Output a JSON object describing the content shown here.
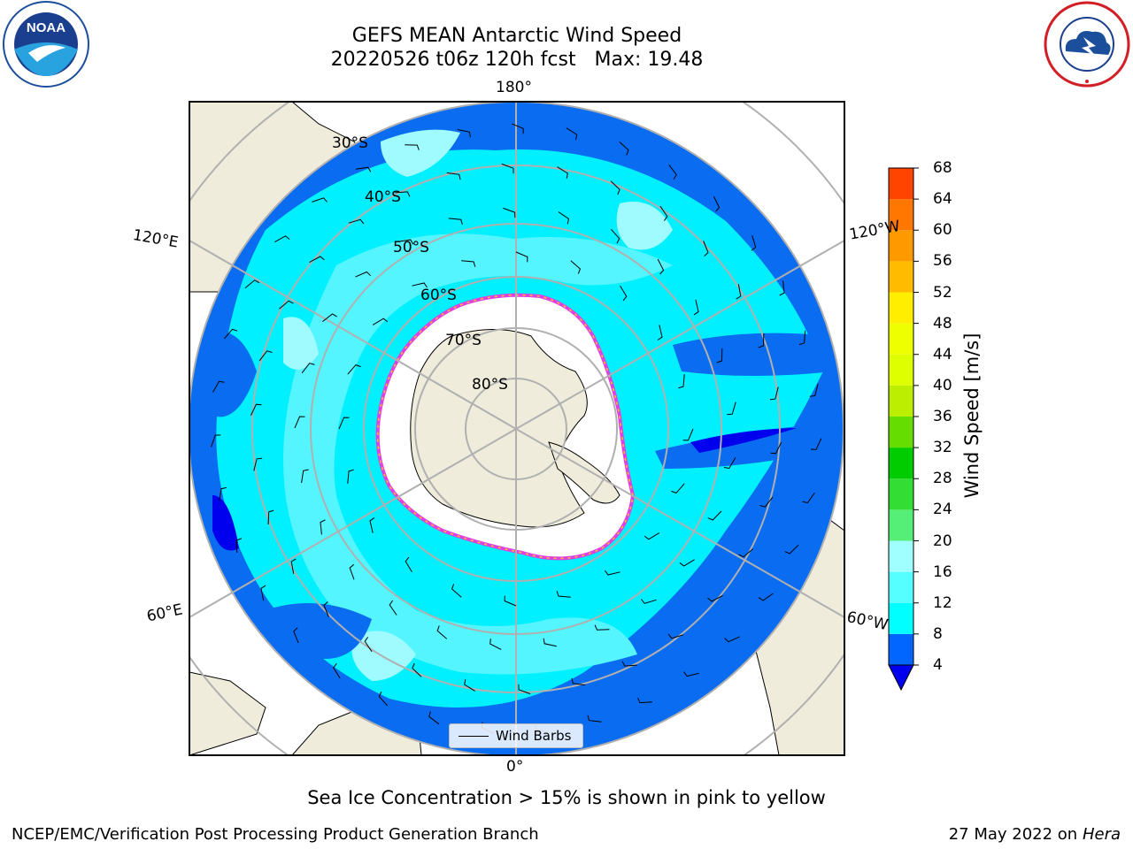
{
  "header": {
    "title_line_1": "GEFS MEAN Antarctic Wind Speed",
    "title_line_2": "20220526 t06z 120h fcst   Max: 19.48"
  },
  "logos": {
    "left": "noaa-logo",
    "right": "national-weather-service-logo"
  },
  "map": {
    "projection": "south-polar-stereographic",
    "longitude_labels": {
      "top": "180°",
      "bottom": "0°",
      "upper_left": "120°E",
      "upper_right": "120°W",
      "lower_left": "60°E",
      "lower_right": "60°W"
    },
    "latitude_labels": [
      "30°S",
      "40°S",
      "50°S",
      "60°S",
      "70°S",
      "80°S"
    ],
    "colors": {
      "land": "#efecdc",
      "sea_ice": "#ffffff",
      "ice_edge_pink": "#e040e0",
      "ice_edge_yellow": "#f8c030",
      "wind_4_8": "#0a6cf0",
      "wind_8_12": "#00f0ff",
      "wind_12_16": "#54f5ff",
      "wind_16_20": "#9ffbff",
      "grid": "#b0b0b0"
    },
    "legend": {
      "label": "Wind Barbs"
    }
  },
  "colorbar": {
    "label": "Wind Speed [m/s]",
    "ticks": [
      "68",
      "64",
      "60",
      "56",
      "52",
      "48",
      "44",
      "40",
      "36",
      "32",
      "28",
      "24",
      "20",
      "16",
      "12",
      "8",
      "4"
    ],
    "colors_low_to_high": [
      "#0066ff",
      "#00ffff",
      "#55ffff",
      "#a0ffff",
      "#55ee77",
      "#33dd33",
      "#00cc00",
      "#66dd00",
      "#bbee00",
      "#ddff00",
      "#eeff00",
      "#ffee00",
      "#ffbb00",
      "#ff9900",
      "#ff7700",
      "#ff4400",
      "#ff0000"
    ],
    "extend_color": "#0000ee"
  },
  "footer": {
    "note": "Sea Ice Concentration > 15% is shown in pink to yellow",
    "credit_left": "NCEP/EMC/Verification Post Processing Product Generation Branch",
    "credit_right_prefix": "27 May 2022 on",
    "credit_right_machine": "Hera"
  }
}
